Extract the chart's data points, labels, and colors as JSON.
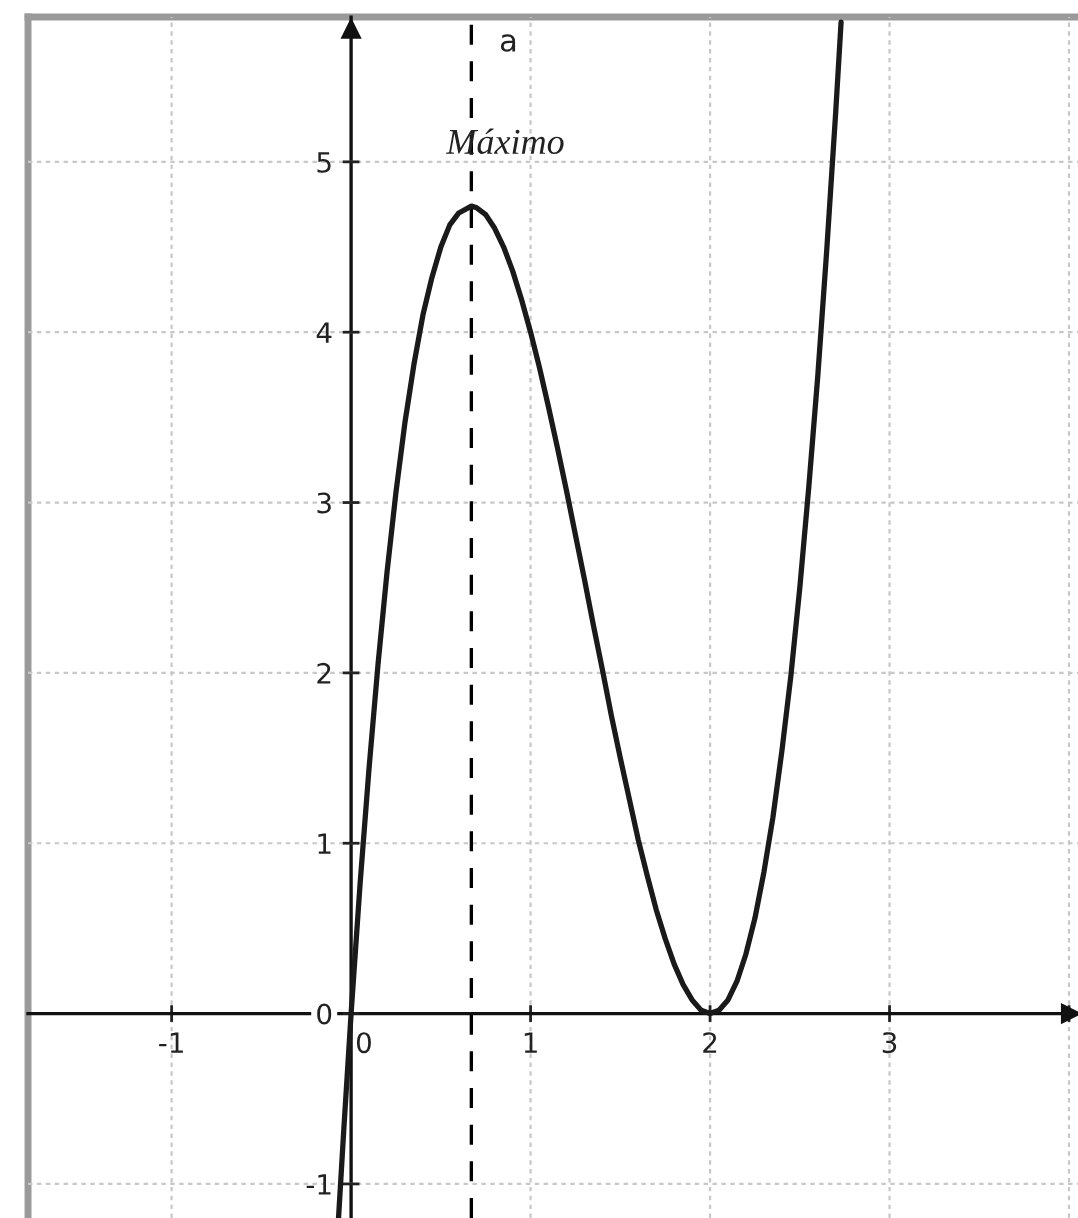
{
  "chart_data": {
    "type": "line",
    "x": [
      -0.07,
      -0.04,
      0,
      0.05,
      0.1,
      0.15,
      0.2,
      0.25,
      0.3,
      0.35,
      0.4,
      0.45,
      0.5,
      0.55,
      0.6,
      0.67,
      0.7,
      0.75,
      0.8,
      0.85,
      0.9,
      0.95,
      1.0,
      1.05,
      1.1,
      1.15,
      1.2,
      1.25,
      1.3,
      1.35,
      1.4,
      1.45,
      1.5,
      1.55,
      1.6,
      1.65,
      1.7,
      1.75,
      1.8,
      1.85,
      1.9,
      1.95,
      2.0,
      2.05,
      2.1,
      2.15,
      2.2,
      2.25,
      2.3,
      2.35,
      2.4,
      2.45,
      2.5,
      2.55,
      2.6,
      2.65,
      2.7,
      2.73
    ],
    "values": [
      -1.2,
      -0.67,
      0,
      0.76,
      1.44,
      2.05,
      2.59,
      3.06,
      3.47,
      3.81,
      4.1,
      4.32,
      4.5,
      4.63,
      4.7,
      4.74,
      4.73,
      4.69,
      4.61,
      4.5,
      4.36,
      4.19,
      4.0,
      3.79,
      3.56,
      3.32,
      3.07,
      2.81,
      2.55,
      2.28,
      2.02,
      1.75,
      1.5,
      1.26,
      1.02,
      0.81,
      0.61,
      0.44,
      0.29,
      0.17,
      0.08,
      0.02,
      0,
      0.02,
      0.08,
      0.19,
      0.35,
      0.56,
      0.83,
      1.15,
      1.54,
      1.98,
      2.5,
      3.09,
      3.74,
      4.48,
      5.29,
      5.82
    ],
    "color": "#1a1a1a",
    "marker": "none",
    "line_style": "solid",
    "xlim": [
      -1.8,
      4.05
    ],
    "ylim": [
      -1.2,
      5.85
    ],
    "xticks": [
      -1,
      0,
      1,
      2,
      3,
      {
        "value": 4,
        "label": null
      }
    ],
    "yticks": [
      -1,
      0,
      1,
      2,
      3,
      4,
      5
    ],
    "grid": true,
    "ref_lines": [
      {
        "axis": "x",
        "value": 0.67,
        "label": "a",
        "line_style": "dashed",
        "color": "#000000"
      }
    ],
    "annotations": [
      {
        "text": "Máximo",
        "x": 0.67,
        "y": 4.74
      }
    ]
  }
}
